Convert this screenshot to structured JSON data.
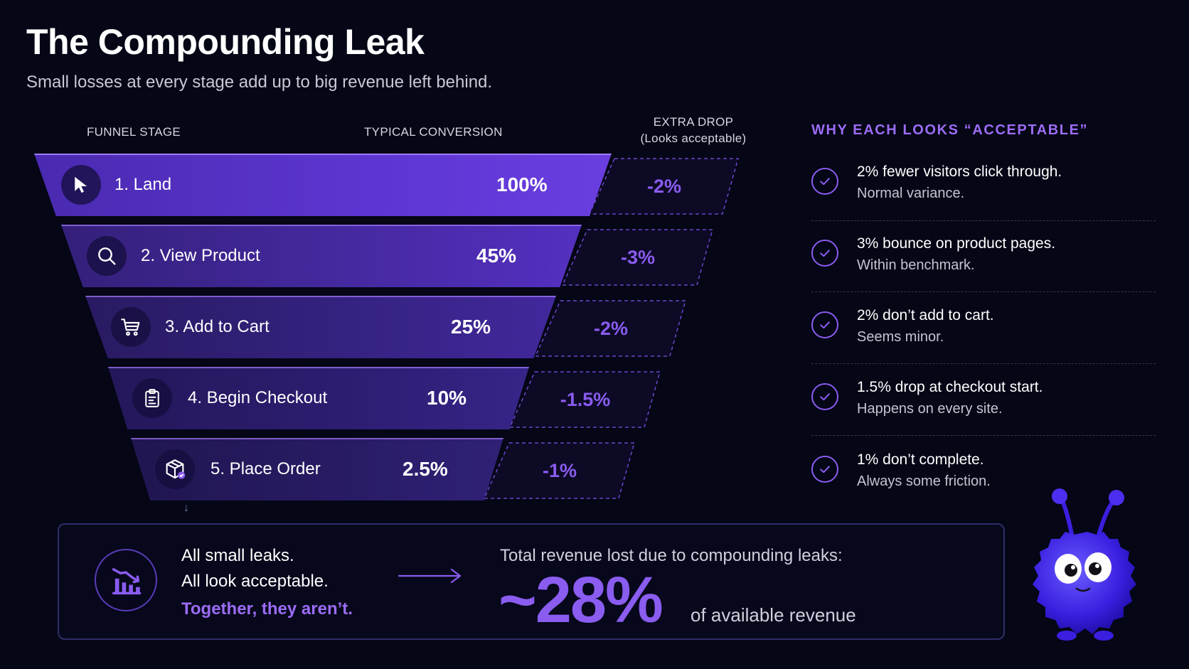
{
  "header": {
    "title": "The Compounding Leak",
    "subtitle": "Small losses at every stage add up to big revenue left behind."
  },
  "columns": {
    "stage": "FUNNEL STAGE",
    "conversion": "TYPICAL CONVERSION",
    "drop_line1": "EXTRA DROP",
    "drop_line2": "(Looks acceptable)",
    "why": "WHY EACH LOOKS “ACCEPTABLE”"
  },
  "stages": [
    {
      "label": "1. Land",
      "value": "100%",
      "drop": "-2%",
      "icon": "cursor-icon"
    },
    {
      "label": "2. View Product",
      "value": "45%",
      "drop": "-3%",
      "icon": "search-icon"
    },
    {
      "label": "3. Add to Cart",
      "value": "25%",
      "drop": "-2%",
      "icon": "cart-icon"
    },
    {
      "label": "4. Begin Checkout",
      "value": "10%",
      "drop": "-1.5%",
      "icon": "clipboard-icon"
    },
    {
      "label": "5. Place Order",
      "value": "2.5%",
      "drop": "-1%",
      "icon": "package-check-icon"
    }
  ],
  "reasons": [
    {
      "line1": "2% fewer visitors click through.",
      "line2": "Normal variance."
    },
    {
      "line1": "3% bounce on product pages.",
      "line2": "Within benchmark."
    },
    {
      "line1": "2% don’t add to cart.",
      "line2": "Seems minor."
    },
    {
      "line1": "1.5% drop at checkout start.",
      "line2": "Happens on every site."
    },
    {
      "line1": "1% don’t complete.",
      "line2": "Always some friction."
    }
  ],
  "summary": {
    "line1": "All small leaks.",
    "line2": "All look acceptable.",
    "line3": "Together, they aren’t.",
    "caption": "Total revenue lost due to compounding leaks:",
    "big_value": "~28%",
    "suffix": "of available revenue",
    "icon": "declining-chart-icon"
  },
  "colors": {
    "background": "#050616",
    "accent": "#8a5cf0",
    "funnel_top": "#5d36d2",
    "mascot": "#4a2ff0"
  }
}
